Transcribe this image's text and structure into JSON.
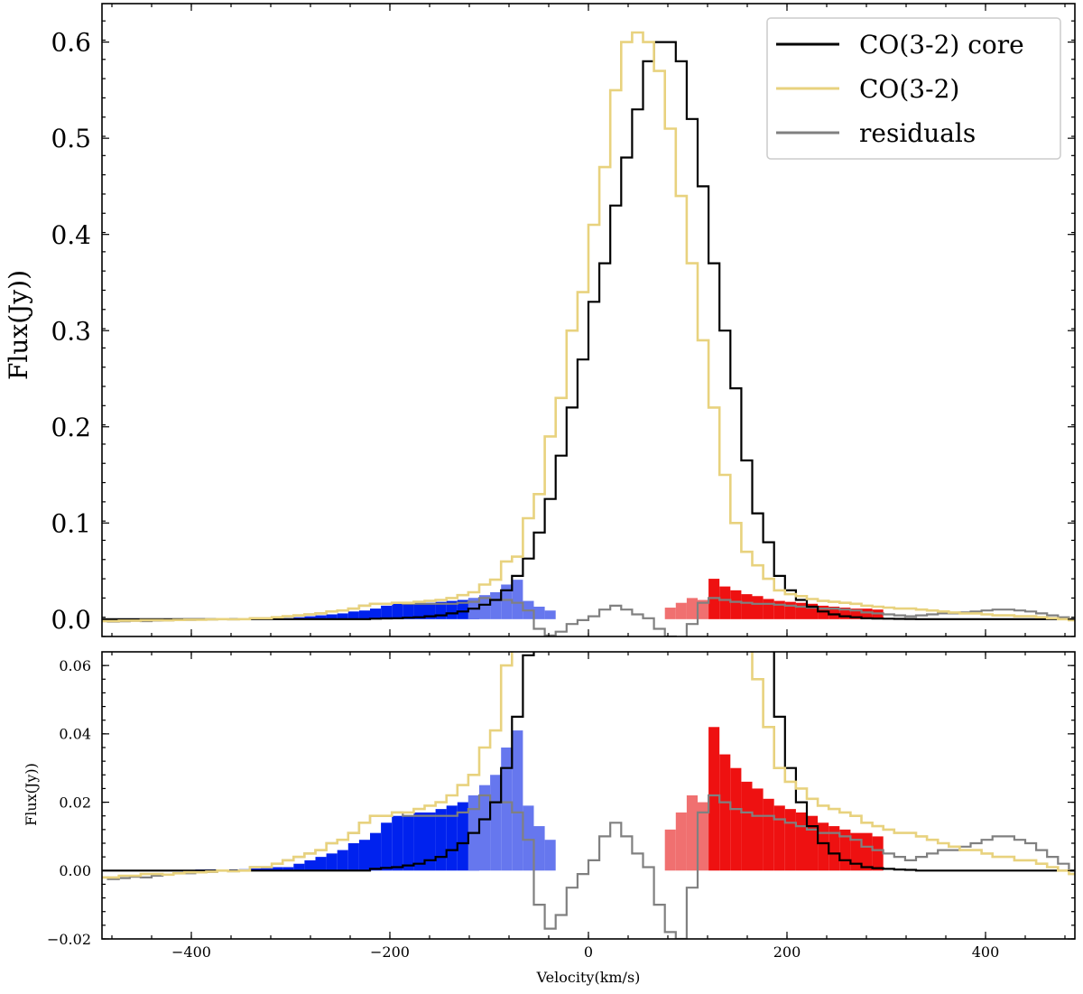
{
  "chart_data": [
    {
      "type": "line",
      "panel": "top",
      "xlabel": "",
      "ylabel": "Flux(Jy))",
      "xlim": [
        -490,
        490
      ],
      "ylim": [
        -0.018,
        0.64
      ],
      "yticks": [
        0.0,
        0.1,
        0.2,
        0.3,
        0.4,
        0.5,
        0.6
      ],
      "ytick_labels": [
        "0.0",
        "0.1",
        "0.2",
        "0.3",
        "0.4",
        "0.5",
        "0.6"
      ],
      "legend": {
        "position": "top-right",
        "entries": [
          {
            "label": "CO(3-2) core",
            "color": "#000000"
          },
          {
            "label": "CO(3-2)",
            "color": "#e8d27e"
          },
          {
            "label": "residuals",
            "color": "#808080"
          }
        ]
      },
      "grid": false
    },
    {
      "type": "line",
      "panel": "bottom",
      "xlabel": "Velocity(km/s)",
      "ylabel": "Flux(Jy))",
      "xlim": [
        -490,
        490
      ],
      "ylim": [
        -0.02,
        0.064
      ],
      "xticks": [
        -400,
        -200,
        0,
        200,
        400
      ],
      "xtick_labels": [
        "−400",
        "−200",
        "0",
        "200",
        "400"
      ],
      "yticks": [
        -0.02,
        0.0,
        0.02,
        0.04,
        0.06
      ],
      "ytick_labels": [
        "−0.02",
        "0.00",
        "0.02",
        "0.04",
        "0.06"
      ],
      "grid": false
    }
  ],
  "spectra": {
    "bin_width_kms": 11,
    "bin_start_kms": -495,
    "series": [
      {
        "name": "CO(3-2) core",
        "color": "#000000",
        "values": [
          0,
          0,
          0,
          0,
          0,
          0,
          0,
          0,
          0,
          0,
          0,
          0,
          0,
          0,
          0,
          0,
          0,
          0,
          0,
          0,
          0,
          0,
          0,
          0,
          0,
          0.0005,
          0.0008,
          0.001,
          0.0015,
          0.002,
          0.003,
          0.004,
          0.006,
          0.008,
          0.011,
          0.015,
          0.02,
          0.03,
          0.045,
          0.063,
          0.09,
          0.125,
          0.17,
          0.22,
          0.27,
          0.33,
          0.37,
          0.43,
          0.48,
          0.53,
          0.58,
          0.6,
          0.6,
          0.58,
          0.52,
          0.45,
          0.37,
          0.3,
          0.24,
          0.165,
          0.11,
          0.08,
          0.045,
          0.03,
          0.02,
          0.013,
          0.008,
          0.005,
          0.003,
          0.002,
          0.001,
          0.0007,
          0.0005,
          0.0003,
          0.0002,
          0,
          0,
          0,
          0,
          0,
          0,
          0,
          0,
          0,
          0,
          0,
          0,
          0,
          0,
          0,
          0
        ]
      },
      {
        "name": "CO(3-2)",
        "color": "#e8d27e",
        "values": [
          -0.002,
          -0.002,
          -0.0015,
          -0.0015,
          -0.001,
          -0.001,
          -0.0012,
          -0.0008,
          -0.0005,
          -0.0005,
          -0.0003,
          0,
          -0.0002,
          0,
          0.001,
          0.001,
          0.002,
          0.003,
          0.004,
          0.005,
          0.006,
          0.008,
          0.009,
          0.011,
          0.014,
          0.016,
          0.016,
          0.017,
          0.017,
          0.018,
          0.019,
          0.02,
          0.022,
          0.025,
          0.028,
          0.036,
          0.041,
          0.06,
          0.065,
          0.105,
          0.13,
          0.19,
          0.23,
          0.3,
          0.34,
          0.41,
          0.47,
          0.55,
          0.6,
          0.61,
          0.6,
          0.57,
          0.51,
          0.44,
          0.37,
          0.29,
          0.22,
          0.15,
          0.1,
          0.07,
          0.056,
          0.042,
          0.03,
          0.026,
          0.024,
          0.021,
          0.019,
          0.018,
          0.017,
          0.016,
          0.014,
          0.013,
          0.012,
          0.011,
          0.011,
          0.01,
          0.009,
          0.008,
          0.007,
          0.006,
          0.006,
          0.005,
          0.004,
          0.004,
          0.003,
          0.003,
          0.002,
          0.001,
          0,
          -0.001
        ]
      },
      {
        "name": "residuals",
        "color": "#808080",
        "values": [
          -0.002,
          -0.0025,
          -0.0022,
          -0.0018,
          -0.002,
          -0.0015,
          -0.0012,
          -0.0008,
          -0.0008,
          -0.0005,
          -0.0004,
          0,
          -0.0002,
          0,
          0.001,
          0.001,
          0.002,
          0.003,
          0.004,
          0.005,
          0.006,
          0.008,
          0.009,
          0.011,
          0.014,
          0.016,
          0.016,
          0.017,
          0.016,
          0.016,
          0.016,
          0.016,
          0.016,
          0.017,
          0.018,
          0.022,
          0.02,
          0.02,
          0.017,
          0.009,
          -0.01,
          -0.017,
          -0.013,
          -0.005,
          -0.001,
          0.003,
          0.01,
          0.014,
          0.01,
          0.005,
          0.001,
          -0.01,
          -0.018,
          -0.02,
          -0.005,
          0.017,
          0.022,
          0.02,
          0.018,
          0.017,
          0.016,
          0.016,
          0.015,
          0.014,
          0.013,
          0.012,
          0.011,
          0.011,
          0.01,
          0.009,
          0.007,
          0.006,
          0.005,
          0.004,
          0.003,
          0.004,
          0.005,
          0.006,
          0.006,
          0.007,
          0.008,
          0.009,
          0.01,
          0.01,
          0.009,
          0.008,
          0.006,
          0.004,
          0.002,
          0,
          -0.001
        ]
      }
    ],
    "blue_wing": {
      "color": "#0022ee",
      "light_color": "#6677ee",
      "start_bin": 9,
      "end_bin": 36,
      "light_start_bin": 34,
      "light_end_bin": 39,
      "values": [
        0.0003,
        0.0003,
        0.0003,
        0.0003,
        0.0004,
        0.0006,
        0.0008,
        0.001,
        0.001,
        0.002,
        0.003,
        0.004,
        0.005,
        0.006,
        0.008,
        0.009,
        0.011,
        0.014,
        0.016,
        0.016,
        0.017,
        0.017,
        0.018,
        0.019,
        0.02,
        0.022,
        0.025,
        0.028,
        0.036,
        0.041,
        0.019,
        0.013,
        0.009
      ]
    },
    "red_wing": {
      "color": "#ee1111",
      "light_color": "#f07070",
      "start_bin": 56,
      "end_bin": 72,
      "light_start_bin": 52,
      "light_end_bin": 56,
      "values": [
        0.042,
        0.034,
        0.03,
        0.026,
        0.024,
        0.021,
        0.019,
        0.018,
        0.017,
        0.016,
        0.014,
        0.013,
        0.012,
        0.011,
        0.011,
        0.01
      ],
      "light_values": [
        0.012,
        0.017,
        0.022,
        0.02
      ]
    }
  }
}
